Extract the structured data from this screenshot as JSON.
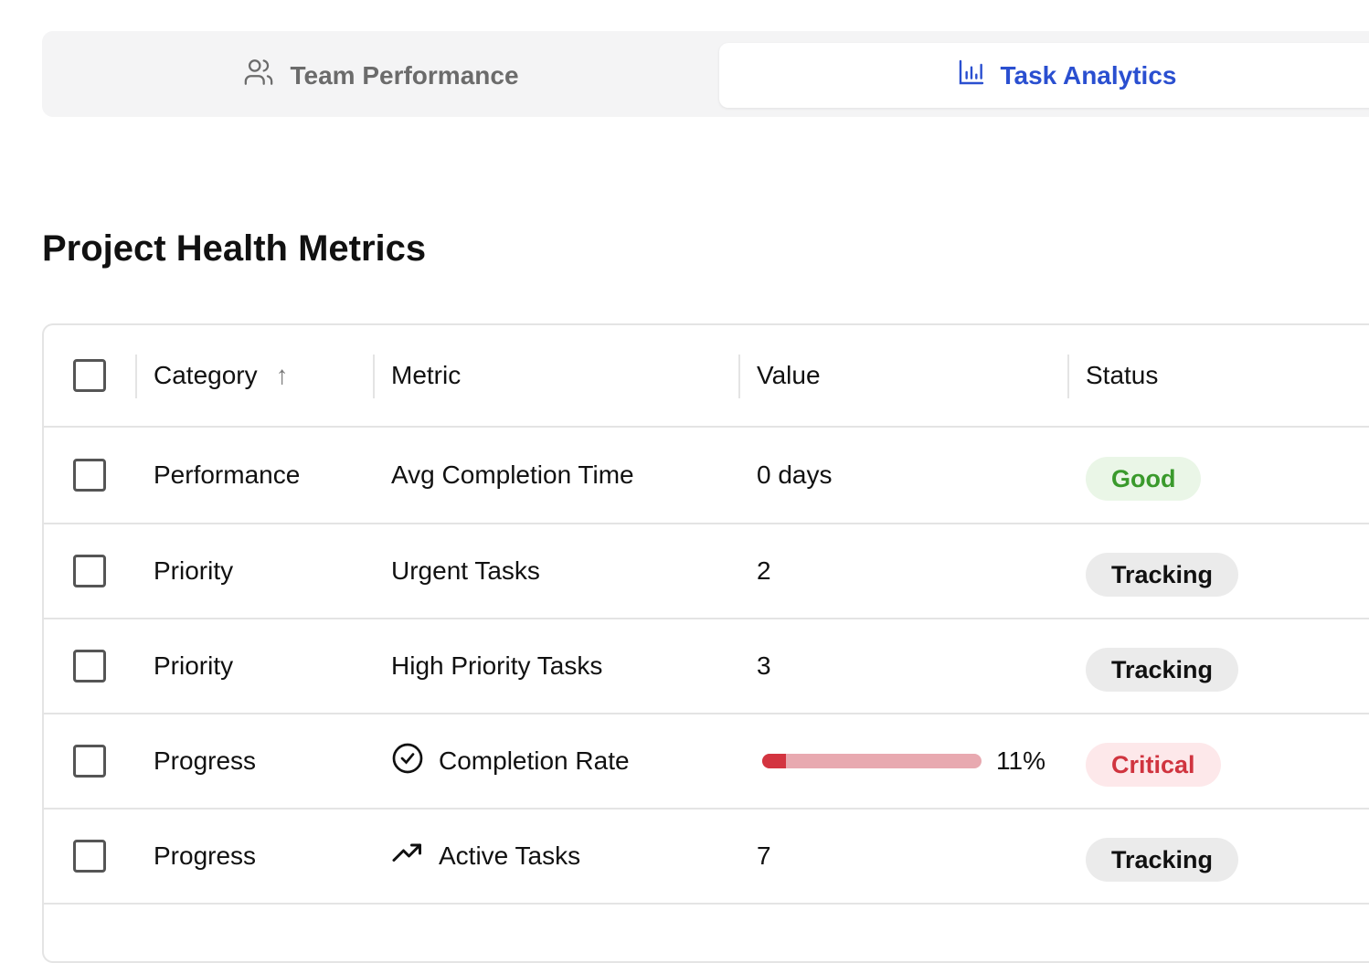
{
  "tabs": [
    {
      "label": "Team Performance",
      "icon": "users-icon",
      "active": false
    },
    {
      "label": "Task Analytics",
      "icon": "bar-chart-icon",
      "active": true
    }
  ],
  "title": "Project Health Metrics",
  "table": {
    "headers": {
      "category": "Category",
      "metric": "Metric",
      "value": "Value",
      "status": "Status",
      "sort": "ascending"
    },
    "rows": [
      {
        "category": "Performance",
        "metric": "Avg Completion Time",
        "value": "0 days",
        "status": "Good"
      },
      {
        "category": "Priority",
        "metric": "Urgent Tasks",
        "value": "2",
        "status": "Tracking"
      },
      {
        "category": "Priority",
        "metric": "High Priority Tasks",
        "value": "3",
        "status": "Tracking"
      },
      {
        "category": "Progress",
        "metric": "Completion Rate",
        "metric_icon": "check-circle-icon",
        "value": "11%",
        "progress": 11,
        "status": "Critical"
      },
      {
        "category": "Progress",
        "metric": "Active Tasks",
        "metric_icon": "trending-up-icon",
        "value": "7",
        "status": "Tracking"
      }
    ]
  },
  "colors": {
    "accent": "#2a4fd0",
    "good": "#3a9a2c",
    "critical": "#d0343f"
  }
}
